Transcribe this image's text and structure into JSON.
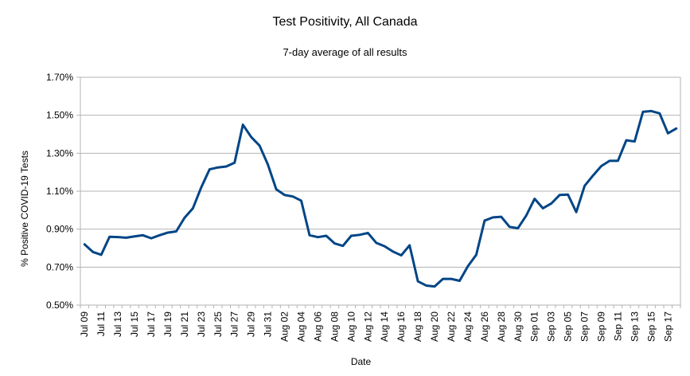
{
  "chart_data": {
    "type": "line",
    "title": "Test Positivity, All Canada",
    "subtitle": "7-day average of all results",
    "xlabel": "Date",
    "ylabel": "% Positive COVID-19 Tests",
    "ylim": [
      0.5,
      1.7
    ],
    "yticks": [
      "0.50%",
      "0.70%",
      "0.90%",
      "1.10%",
      "1.30%",
      "1.50%",
      "1.70%"
    ],
    "ytick_values": [
      0.5,
      0.7,
      0.9,
      1.1,
      1.3,
      1.5,
      1.7
    ],
    "grid": true,
    "legend": "none",
    "line_color": "#004586",
    "x": [
      "Jul 09",
      "Jul 10",
      "Jul 11",
      "Jul 12",
      "Jul 13",
      "Jul 14",
      "Jul 15",
      "Jul 16",
      "Jul 17",
      "Jul 18",
      "Jul 19",
      "Jul 20",
      "Jul 21",
      "Jul 22",
      "Jul 23",
      "Jul 24",
      "Jul 25",
      "Jul 26",
      "Jul 27",
      "Jul 28",
      "Jul 29",
      "Jul 30",
      "Jul 31",
      "Aug 01",
      "Aug 02",
      "Aug 03",
      "Aug 04",
      "Aug 05",
      "Aug 06",
      "Aug 07",
      "Aug 08",
      "Aug 09",
      "Aug 10",
      "Aug 11",
      "Aug 12",
      "Aug 13",
      "Aug 14",
      "Aug 15",
      "Aug 16",
      "Aug 17",
      "Aug 18",
      "Aug 19",
      "Aug 20",
      "Aug 21",
      "Aug 22",
      "Aug 23",
      "Aug 24",
      "Aug 25",
      "Aug 26",
      "Aug 27",
      "Aug 28",
      "Aug 29",
      "Aug 30",
      "Aug 31",
      "Sep 01",
      "Sep 02",
      "Sep 03",
      "Sep 04",
      "Sep 05",
      "Sep 06",
      "Sep 07",
      "Sep 08",
      "Sep 09",
      "Sep 10",
      "Sep 11",
      "Sep 12",
      "Sep 13",
      "Sep 14",
      "Sep 15",
      "Sep 16",
      "Sep 17",
      "Sep 18"
    ],
    "xtick_labels": [
      "Jul 09",
      "Jul 11",
      "Jul 13",
      "Jul 15",
      "Jul 17",
      "Jul 19",
      "Jul 21",
      "Jul 23",
      "Jul 25",
      "Jul 27",
      "Jul 29",
      "Jul 31",
      "Aug 02",
      "Aug 04",
      "Aug 06",
      "Aug 08",
      "Aug 10",
      "Aug 12",
      "Aug 14",
      "Aug 16",
      "Aug 18",
      "Aug 20",
      "Aug 22",
      "Aug 24",
      "Aug 26",
      "Aug 28",
      "Aug 30",
      "Sep 01",
      "Sep 03",
      "Sep 05",
      "Sep 07",
      "Sep 09",
      "Sep 11",
      "Sep 13",
      "Sep 15",
      "Sep 17"
    ],
    "values": [
      0.82,
      0.78,
      0.765,
      0.86,
      0.858,
      0.855,
      0.862,
      0.868,
      0.852,
      0.868,
      0.882,
      0.888,
      0.96,
      1.01,
      1.12,
      1.215,
      1.225,
      1.23,
      1.25,
      1.45,
      1.385,
      1.34,
      1.24,
      1.11,
      1.08,
      1.072,
      1.05,
      0.868,
      0.858,
      0.865,
      0.825,
      0.812,
      0.865,
      0.87,
      0.88,
      0.828,
      0.81,
      0.782,
      0.762,
      0.815,
      0.625,
      0.603,
      0.598,
      0.638,
      0.638,
      0.628,
      0.705,
      0.765,
      0.945,
      0.962,
      0.965,
      0.912,
      0.905,
      0.972,
      1.06,
      1.01,
      1.035,
      1.08,
      1.082,
      0.99,
      1.128,
      1.182,
      1.232,
      1.26,
      1.26,
      1.368,
      1.362,
      1.518,
      1.522,
      1.51,
      1.405,
      1.43
    ]
  }
}
